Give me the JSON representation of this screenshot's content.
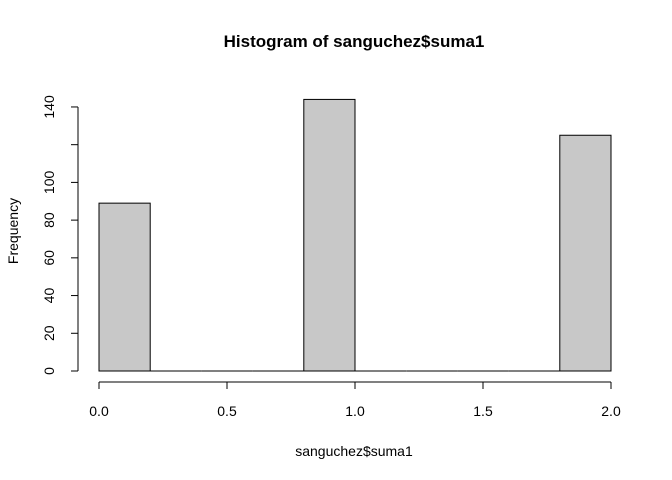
{
  "chart_data": {
    "type": "bar",
    "title": "Histogram of sanguchez$suma1",
    "xlabel": "sanguchez$suma1",
    "ylabel": "Frequency",
    "bin_edges": [
      0.0,
      0.2,
      0.4,
      0.6,
      0.8,
      1.0,
      1.2,
      1.4,
      1.6,
      1.8,
      2.0
    ],
    "values": [
      89,
      0,
      0,
      0,
      144,
      0,
      0,
      0,
      0,
      125
    ],
    "xlim": [
      0.0,
      2.0
    ],
    "ylim": [
      0,
      144
    ],
    "x_ticks": [
      {
        "value": 0.0,
        "label": "0.0"
      },
      {
        "value": 0.5,
        "label": "0.5"
      },
      {
        "value": 1.0,
        "label": "1.0"
      },
      {
        "value": 1.5,
        "label": "1.5"
      },
      {
        "value": 2.0,
        "label": "2.0"
      }
    ],
    "y_ticks": [
      {
        "value": 0,
        "label": "0"
      },
      {
        "value": 20,
        "label": "20"
      },
      {
        "value": 40,
        "label": "40"
      },
      {
        "value": 60,
        "label": "60"
      },
      {
        "value": 80,
        "label": "80"
      },
      {
        "value": 100,
        "label": "100"
      },
      {
        "value": 120,
        "label": ""
      },
      {
        "value": 140,
        "label": "140"
      }
    ],
    "bar_fill": "#c8c8c8",
    "bar_stroke": "#000000",
    "grid": false,
    "legend": "none"
  }
}
